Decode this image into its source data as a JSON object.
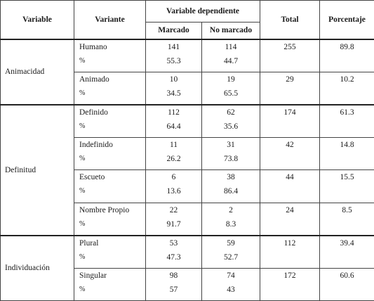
{
  "headers": {
    "variable": "Variable",
    "variante": "Variante",
    "dependiente": "Variable dependiente",
    "marcado": "Marcado",
    "no_marcado": "No marcado",
    "total": "Total",
    "porcentaje": "Porcentaje"
  },
  "groups": {
    "animacidad": "Animacidad",
    "definitud": "Definitud",
    "individuacion": "Individuación"
  },
  "rows": [
    {
      "variante": "Humano",
      "pct_sign": "%",
      "marcado": "141",
      "marcado_pct": "55.3",
      "no_marcado": "114",
      "no_marcado_pct": "44.7",
      "total": "255",
      "porcentaje": "89.8"
    },
    {
      "variante": "Animado",
      "pct_sign": "%",
      "marcado": "10",
      "marcado_pct": "34.5",
      "no_marcado": "19",
      "no_marcado_pct": "65.5",
      "total": "29",
      "porcentaje": "10.2"
    },
    {
      "variante": "Definido",
      "pct_sign": "%",
      "marcado": "112",
      "marcado_pct": "64.4",
      "no_marcado": "62",
      "no_marcado_pct": "35.6",
      "total": "174",
      "porcentaje": "61.3"
    },
    {
      "variante": "Indefinido",
      "pct_sign": "%",
      "marcado": "11",
      "marcado_pct": "26.2",
      "no_marcado": "31",
      "no_marcado_pct": "73.8",
      "total": "42",
      "porcentaje": "14.8"
    },
    {
      "variante": "Escueto",
      "pct_sign": "%",
      "marcado": "6",
      "marcado_pct": "13.6",
      "no_marcado": "38",
      "no_marcado_pct": "86.4",
      "total": "44",
      "porcentaje": "15.5"
    },
    {
      "variante": "Nombre Propio",
      "pct_sign": "%",
      "marcado": "22",
      "marcado_pct": "91.7",
      "no_marcado": "2",
      "no_marcado_pct": "8.3",
      "total": "24",
      "porcentaje": "8.5"
    },
    {
      "variante": "Plural",
      "pct_sign": "%",
      "marcado": "53",
      "marcado_pct": "47.3",
      "no_marcado": "59",
      "no_marcado_pct": "52.7",
      "total": "112",
      "porcentaje": "39.4"
    },
    {
      "variante": "Singular",
      "pct_sign": "%",
      "marcado": "98",
      "marcado_pct": "57",
      "no_marcado": "74",
      "no_marcado_pct": "43",
      "total": "172",
      "porcentaje": "60.6"
    }
  ]
}
